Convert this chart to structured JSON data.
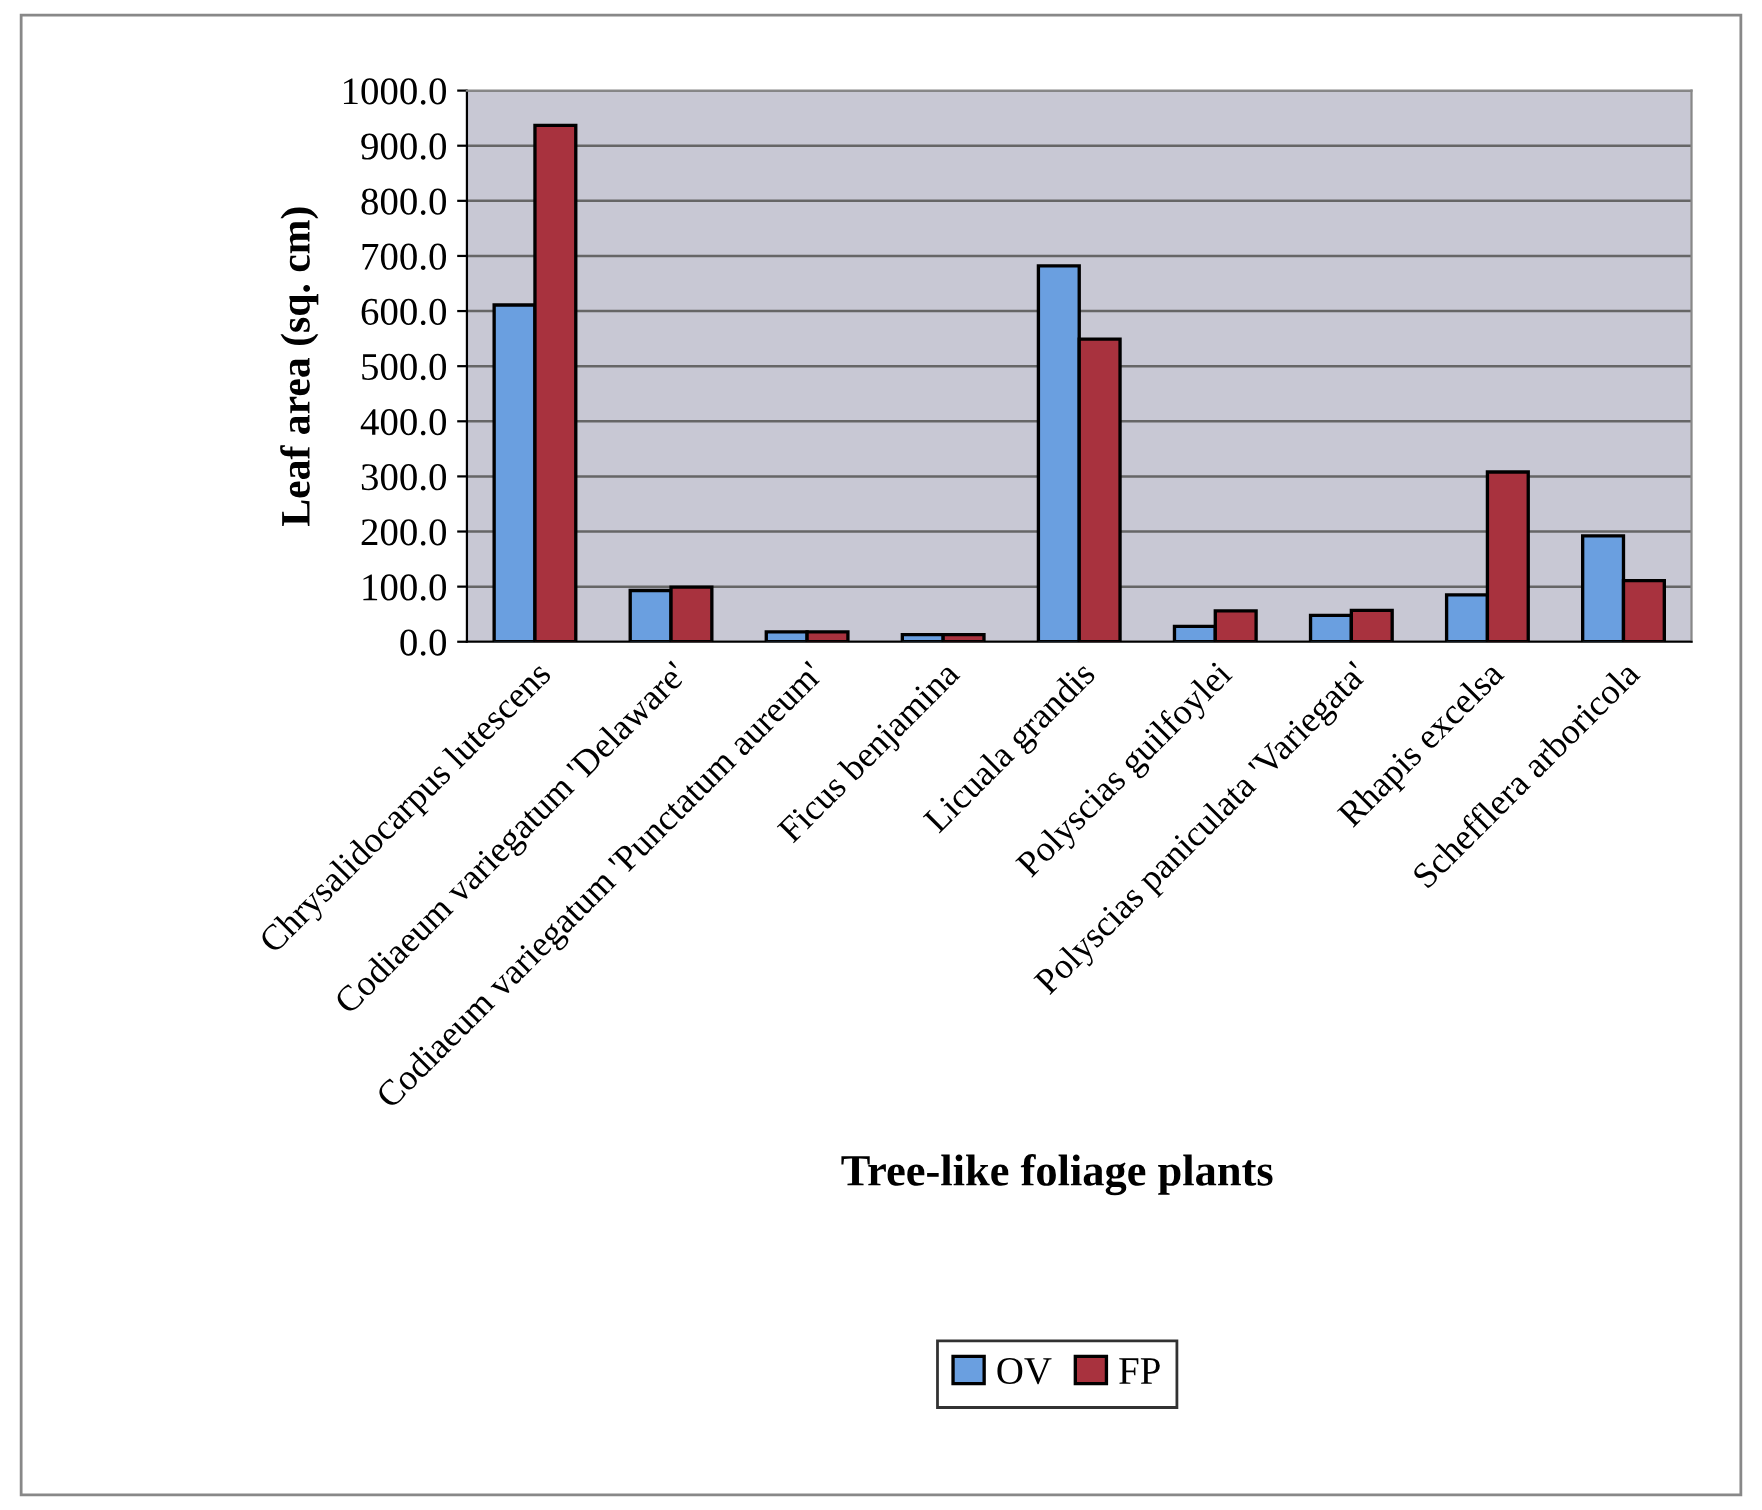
{
  "chart_data": {
    "type": "bar",
    "xlabel": "Tree-like foliage plants",
    "ylabel": "Leaf area (sq. cm)",
    "categories": [
      "Chrysalidocarpus lutescens",
      "Codiaeum variegatum 'Delaware'",
      "Codiaeum variegatum 'Punctatum aureum'",
      "Ficus benjamina",
      "Licuala grandis",
      "Polyscias guilfoylei",
      "Polyscias paniculata 'Variegata'",
      "Rhapis excelsa",
      "Schefflera arboricola"
    ],
    "series": [
      {
        "name": "OV",
        "color": "#6a9fe0",
        "values": [
          611,
          93,
          18,
          13,
          682,
          28,
          48,
          85,
          192
        ]
      },
      {
        "name": "FP",
        "color": "#a8323e",
        "values": [
          937,
          99,
          18,
          13,
          549,
          56,
          57,
          308,
          111
        ]
      }
    ],
    "ylim": [
      0,
      1000
    ],
    "yticks": [
      {
        "value": 0,
        "label": "0.0"
      },
      {
        "value": 100,
        "label": "100.0"
      },
      {
        "value": 200,
        "label": "200.0"
      },
      {
        "value": 300,
        "label": "300.0"
      },
      {
        "value": 400,
        "label": "400.0"
      },
      {
        "value": 500,
        "label": "500.0"
      },
      {
        "value": 600,
        "label": "600.0"
      },
      {
        "value": 700,
        "label": "700.0"
      },
      {
        "value": 800,
        "label": "800.0"
      },
      {
        "value": 900,
        "label": "900.0"
      },
      {
        "value": 1000,
        "label": "1000.0"
      }
    ],
    "grid": "y",
    "legend": "bottom"
  }
}
